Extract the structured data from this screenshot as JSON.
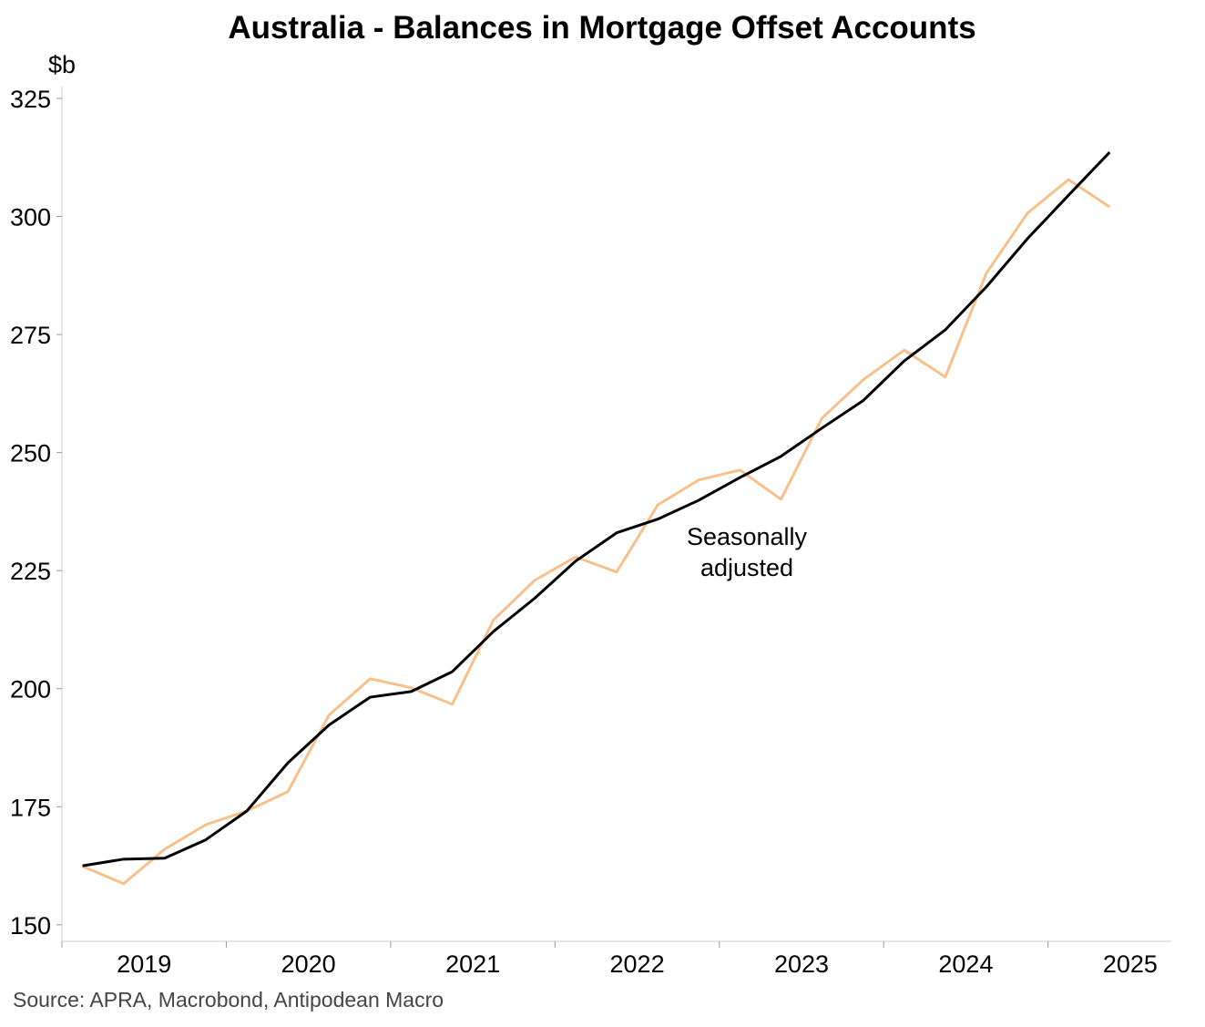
{
  "chart_data": {
    "type": "line",
    "title": "Australia - Balances in Mortgage Offset Accounts",
    "y_label": "$b",
    "source": "Source: APRA, Macrobond, Antipodean Macro",
    "x": [
      2019.125,
      2019.375,
      2019.625,
      2019.875,
      2020.125,
      2020.375,
      2020.625,
      2020.875,
      2021.125,
      2021.375,
      2021.625,
      2021.875,
      2022.125,
      2022.375,
      2022.625,
      2022.875,
      2023.125,
      2023.375,
      2023.625,
      2023.875,
      2024.125,
      2024.375,
      2024.625,
      2024.875,
      2025.125,
      2025.375
    ],
    "series": [
      {
        "color": "#f8c08a",
        "values": [
          162.4,
          158.7,
          166.0,
          171.2,
          174.1,
          178.2,
          194.4,
          202.1,
          200.2,
          196.7,
          214.5,
          222.9,
          227.9,
          224.7,
          238.9,
          244.2,
          246.3,
          240.1,
          257.3,
          265.4,
          271.7,
          266.0,
          288.0,
          300.7,
          307.8,
          302.0
        ]
      },
      {
        "name": "Seasonally adjusted",
        "color": "#000000",
        "values": [
          162.5,
          163.9,
          164.1,
          168.0,
          174.1,
          184.3,
          192.3,
          198.2,
          199.4,
          203.6,
          212.1,
          219.1,
          227.0,
          233.0,
          235.9,
          239.9,
          244.7,
          249.2,
          255.2,
          261.0,
          269.4,
          276.0,
          285.1,
          295.3,
          304.5,
          313.6
        ]
      }
    ],
    "xlim": [
      2019,
      2025.75
    ],
    "xticks": [
      2019,
      2020,
      2021,
      2022,
      2023,
      2024,
      2025
    ],
    "ylim": [
      146.5,
      327.5
    ],
    "yticks": [
      150,
      175,
      200,
      225,
      250,
      275,
      300,
      325
    ]
  }
}
